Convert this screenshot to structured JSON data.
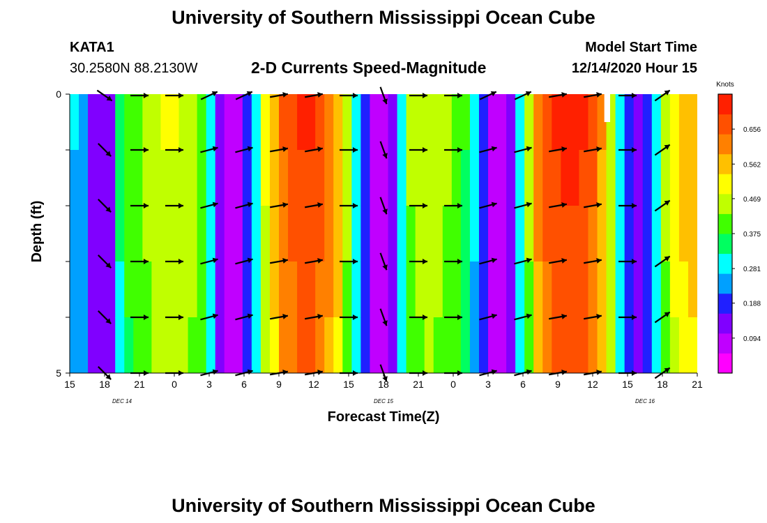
{
  "page": {
    "title_top": "University of Southern Mississippi Ocean Cube",
    "title_bottom": "University of Southern Mississippi Ocean Cube",
    "station_id": "KATA1",
    "station_coords": "30.2580N 88.2130W",
    "chart_title": "2-D Currents Speed-Magnitude",
    "model_start_label": "Model Start Time",
    "model_start_value": "12/14/2020 Hour 15"
  },
  "chart_data": {
    "type": "heatmap",
    "title": "2-D Currents Speed-Magnitude",
    "xlabel": "Forecast Time(Z)",
    "ylabel": "Depth (ft)",
    "x_tick_labels": [
      "15",
      "18",
      "21",
      "0",
      "3",
      "6",
      "9",
      "12",
      "15",
      "18",
      "21",
      "0",
      "3",
      "6",
      "9",
      "12",
      "15",
      "18",
      "21"
    ],
    "date_labels": [
      {
        "text": "DEC 14",
        "tick_index": 1.5
      },
      {
        "text": "DEC 15",
        "tick_index": 9
      },
      {
        "text": "DEC 16",
        "tick_index": 16.5
      }
    ],
    "y_tick_labels": [
      {
        "value": 0,
        "text": "0"
      },
      {
        "value": 1,
        "text": ""
      },
      {
        "value": 2,
        "text": ""
      },
      {
        "value": 3,
        "text": ""
      },
      {
        "value": 4,
        "text": ""
      },
      {
        "value": 5,
        "text": "5"
      }
    ],
    "ylim": [
      0,
      5
    ],
    "x_range_hours": [
      0,
      54
    ],
    "colorbar": {
      "title": "Knots",
      "range": [
        0,
        0.75
      ],
      "ticks": [
        0.094,
        0.188,
        0.281,
        0.375,
        0.469,
        0.562,
        0.656
      ],
      "colors": [
        "#ff00ff",
        "#c000ff",
        "#8000ff",
        "#2020ff",
        "#00a0ff",
        "#00ffff",
        "#00ff60",
        "#40ff00",
        "#c0ff00",
        "#ffff00",
        "#ffc000",
        "#ff8000",
        "#ff5000",
        "#ff2000"
      ]
    },
    "speed_by_hour": [
      0.27,
      0.26,
      0.16,
      0.12,
      0.12,
      0.34,
      0.4,
      0.42,
      0.45,
      0.47,
      0.49,
      0.49,
      0.48,
      0.46,
      0.41,
      0.3,
      0.16,
      0.09,
      0.08,
      0.18,
      0.32,
      0.5,
      0.58,
      0.65,
      0.68,
      0.7,
      0.7,
      0.68,
      0.64,
      0.58,
      0.45,
      0.32,
      0.18,
      0.08,
      0.07,
      0.12,
      0.32,
      0.44,
      0.46,
      0.47,
      0.46,
      0.44,
      0.42,
      0.38,
      0.28,
      0.18,
      0.09,
      0.07,
      0.12,
      0.3,
      0.45,
      0.62,
      0.68,
      0.7,
      0.72,
      0.72,
      0.7,
      0.66,
      0.6,
      0.48,
      0.32,
      0.18,
      0.12,
      0.2,
      0.32,
      0.45,
      0.52,
      0.56,
      0.58
    ],
    "missing_data": {
      "hour_from": 46,
      "hour_to": 46.5,
      "depth_from": 0,
      "depth_to": 0.5
    },
    "arrow_depths": [
      0,
      1,
      2,
      3,
      4,
      5
    ],
    "arrow_hours": [
      3,
      6,
      9,
      12,
      15,
      18,
      21,
      24,
      27,
      30,
      33,
      36,
      39,
      42,
      45,
      48,
      51
    ],
    "arrow_directions_deg": [
      -45,
      0,
      0,
      15,
      15,
      10,
      10,
      0,
      -70,
      0,
      0,
      15,
      15,
      10,
      10,
      0,
      35
    ],
    "arrow_surface_overrides": {
      "0": -35,
      "8": -70,
      "3": 25,
      "4": 25,
      "11": 25,
      "12": 25,
      "16": 35
    }
  }
}
